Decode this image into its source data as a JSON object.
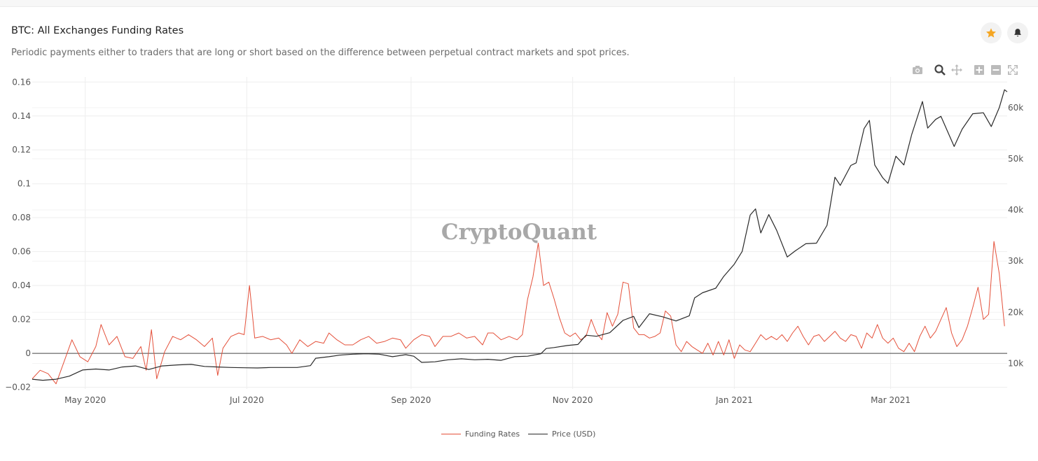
{
  "header": {
    "title": "BTC: All Exchanges Funding Rates",
    "subtitle": "Periodic payments either to traders that are long or short based on the difference between perpetual contract markets and spot prices."
  },
  "actions": {
    "favorite_icon": "star-icon",
    "alert_icon": "bell-icon",
    "favorite_color": "#f5a623"
  },
  "modebar": [
    "camera-icon",
    "zoom-icon",
    "pan-icon",
    "zoom-in-icon",
    "zoom-out-icon",
    "autoscale-icon"
  ],
  "watermark": "CryptoQuant",
  "chart_data": {
    "type": "line",
    "x_range": [
      "2020-04-11",
      "2021-04-14"
    ],
    "x_ticks": [
      {
        "date": "2020-05-01",
        "label": "May 2020"
      },
      {
        "date": "2020-07-01",
        "label": "Jul 2020"
      },
      {
        "date": "2020-09-01",
        "label": "Sep 2020"
      },
      {
        "date": "2020-11-01",
        "label": "Nov 2020"
      },
      {
        "date": "2021-01-01",
        "label": "Jan 2021"
      },
      {
        "date": "2021-03-01",
        "label": "Mar 2021"
      }
    ],
    "y_left": {
      "range": [
        -0.021,
        0.163
      ],
      "ticks": [
        -0.02,
        0,
        0.02,
        0.04,
        0.06,
        0.08,
        0.1,
        0.12,
        0.14,
        0.16
      ],
      "tick_labels": [
        "−0.02",
        "0",
        "0.02",
        "0.04",
        "0.06",
        "0.08",
        "0.1",
        "0.12",
        "0.14",
        "0.16"
      ]
    },
    "y_right": {
      "range": [
        5000,
        66000
      ],
      "ticks": [
        10000,
        20000,
        30000,
        40000,
        50000,
        60000
      ],
      "tick_labels": [
        "10k",
        "20k",
        "30k",
        "40k",
        "50k",
        "60k"
      ]
    },
    "grid": true,
    "legend_position": "bottom-center",
    "series": [
      {
        "name": "Funding Rates",
        "axis": "left",
        "color": "#e4503a",
        "points": [
          [
            "2020-04-11",
            -0.015
          ],
          [
            "2020-04-14",
            -0.01
          ],
          [
            "2020-04-17",
            -0.012
          ],
          [
            "2020-04-20",
            -0.018
          ],
          [
            "2020-04-23",
            -0.005
          ],
          [
            "2020-04-26",
            0.008
          ],
          [
            "2020-04-29",
            -0.002
          ],
          [
            "2020-05-02",
            -0.005
          ],
          [
            "2020-05-05",
            0.004
          ],
          [
            "2020-05-07",
            0.017
          ],
          [
            "2020-05-10",
            0.005
          ],
          [
            "2020-05-13",
            0.01
          ],
          [
            "2020-05-16",
            -0.002
          ],
          [
            "2020-05-19",
            -0.003
          ],
          [
            "2020-05-22",
            0.004
          ],
          [
            "2020-05-24",
            -0.01
          ],
          [
            "2020-05-26",
            0.014
          ],
          [
            "2020-05-28",
            -0.015
          ],
          [
            "2020-05-31",
            0.001
          ],
          [
            "2020-06-03",
            0.01
          ],
          [
            "2020-06-06",
            0.008
          ],
          [
            "2020-06-09",
            0.011
          ],
          [
            "2020-06-12",
            0.008
          ],
          [
            "2020-06-15",
            0.004
          ],
          [
            "2020-06-18",
            0.009
          ],
          [
            "2020-06-20",
            -0.013
          ],
          [
            "2020-06-22",
            0.003
          ],
          [
            "2020-06-25",
            0.01
          ],
          [
            "2020-06-28",
            0.012
          ],
          [
            "2020-06-30",
            0.011
          ],
          [
            "2020-07-02",
            0.04
          ],
          [
            "2020-07-04",
            0.009
          ],
          [
            "2020-07-07",
            0.01
          ],
          [
            "2020-07-10",
            0.008
          ],
          [
            "2020-07-13",
            0.009
          ],
          [
            "2020-07-16",
            0.005
          ],
          [
            "2020-07-18",
            0.0
          ],
          [
            "2020-07-21",
            0.008
          ],
          [
            "2020-07-24",
            0.004
          ],
          [
            "2020-07-27",
            0.007
          ],
          [
            "2020-07-30",
            0.006
          ],
          [
            "2020-08-01",
            0.012
          ],
          [
            "2020-08-04",
            0.008
          ],
          [
            "2020-08-07",
            0.005
          ],
          [
            "2020-08-10",
            0.005
          ],
          [
            "2020-08-13",
            0.008
          ],
          [
            "2020-08-16",
            0.01
          ],
          [
            "2020-08-19",
            0.006
          ],
          [
            "2020-08-22",
            0.007
          ],
          [
            "2020-08-25",
            0.009
          ],
          [
            "2020-08-28",
            0.008
          ],
          [
            "2020-08-30",
            0.003
          ],
          [
            "2020-09-02",
            0.008
          ],
          [
            "2020-09-05",
            0.011
          ],
          [
            "2020-09-08",
            0.01
          ],
          [
            "2020-09-10",
            0.004
          ],
          [
            "2020-09-13",
            0.01
          ],
          [
            "2020-09-16",
            0.01
          ],
          [
            "2020-09-19",
            0.012
          ],
          [
            "2020-09-22",
            0.009
          ],
          [
            "2020-09-25",
            0.01
          ],
          [
            "2020-09-28",
            0.005
          ],
          [
            "2020-09-30",
            0.012
          ],
          [
            "2020-10-02",
            0.012
          ],
          [
            "2020-10-05",
            0.008
          ],
          [
            "2020-10-08",
            0.01
          ],
          [
            "2020-10-11",
            0.008
          ],
          [
            "2020-10-13",
            0.011
          ],
          [
            "2020-10-15",
            0.032
          ],
          [
            "2020-10-17",
            0.045
          ],
          [
            "2020-10-19",
            0.065
          ],
          [
            "2020-10-21",
            0.04
          ],
          [
            "2020-10-23",
            0.042
          ],
          [
            "2020-10-25",
            0.032
          ],
          [
            "2020-10-27",
            0.021
          ],
          [
            "2020-10-29",
            0.012
          ],
          [
            "2020-10-31",
            0.01
          ],
          [
            "2020-11-02",
            0.012
          ],
          [
            "2020-11-04",
            0.008
          ],
          [
            "2020-11-06",
            0.01
          ],
          [
            "2020-11-08",
            0.02
          ],
          [
            "2020-11-10",
            0.012
          ],
          [
            "2020-11-12",
            0.008
          ],
          [
            "2020-11-14",
            0.024
          ],
          [
            "2020-11-16",
            0.016
          ],
          [
            "2020-11-18",
            0.023
          ],
          [
            "2020-11-20",
            0.042
          ],
          [
            "2020-11-22",
            0.041
          ],
          [
            "2020-11-24",
            0.015
          ],
          [
            "2020-11-26",
            0.011
          ],
          [
            "2020-11-28",
            0.011
          ],
          [
            "2020-11-30",
            0.009
          ],
          [
            "2020-12-02",
            0.01
          ],
          [
            "2020-12-04",
            0.012
          ],
          [
            "2020-12-06",
            0.025
          ],
          [
            "2020-12-08",
            0.022
          ],
          [
            "2020-12-10",
            0.005
          ],
          [
            "2020-12-12",
            0.001
          ],
          [
            "2020-12-14",
            0.007
          ],
          [
            "2020-12-16",
            0.004
          ],
          [
            "2020-12-18",
            0.002
          ],
          [
            "2020-12-20",
            0.0
          ],
          [
            "2020-12-22",
            0.006
          ],
          [
            "2020-12-24",
            -0.001
          ],
          [
            "2020-12-26",
            0.007
          ],
          [
            "2020-12-28",
            -0.001
          ],
          [
            "2020-12-30",
            0.008
          ],
          [
            "2021-01-01",
            -0.003
          ],
          [
            "2021-01-03",
            0.005
          ],
          [
            "2021-01-05",
            0.002
          ],
          [
            "2021-01-07",
            0.001
          ],
          [
            "2021-01-09",
            0.006
          ],
          [
            "2021-01-11",
            0.011
          ],
          [
            "2021-01-13",
            0.008
          ],
          [
            "2021-01-15",
            0.01
          ],
          [
            "2021-01-17",
            0.008
          ],
          [
            "2021-01-19",
            0.011
          ],
          [
            "2021-01-21",
            0.007
          ],
          [
            "2021-01-23",
            0.012
          ],
          [
            "2021-01-25",
            0.016
          ],
          [
            "2021-01-27",
            0.01
          ],
          [
            "2021-01-29",
            0.005
          ],
          [
            "2021-01-31",
            0.01
          ],
          [
            "2021-02-02",
            0.011
          ],
          [
            "2021-02-04",
            0.007
          ],
          [
            "2021-02-06",
            0.01
          ],
          [
            "2021-02-08",
            0.013
          ],
          [
            "2021-02-10",
            0.009
          ],
          [
            "2021-02-12",
            0.007
          ],
          [
            "2021-02-14",
            0.011
          ],
          [
            "2021-02-16",
            0.01
          ],
          [
            "2021-02-18",
            0.003
          ],
          [
            "2021-02-20",
            0.012
          ],
          [
            "2021-02-22",
            0.009
          ],
          [
            "2021-02-24",
            0.017
          ],
          [
            "2021-02-26",
            0.009
          ],
          [
            "2021-02-28",
            0.006
          ],
          [
            "2021-03-02",
            0.009
          ],
          [
            "2021-03-04",
            0.003
          ],
          [
            "2021-03-06",
            0.001
          ],
          [
            "2021-03-08",
            0.006
          ],
          [
            "2021-03-10",
            0.001
          ],
          [
            "2021-03-12",
            0.01
          ],
          [
            "2021-03-14",
            0.016
          ],
          [
            "2021-03-16",
            0.009
          ],
          [
            "2021-03-18",
            0.013
          ],
          [
            "2021-03-20",
            0.02
          ],
          [
            "2021-03-22",
            0.027
          ],
          [
            "2021-03-24",
            0.012
          ],
          [
            "2021-03-26",
            0.004
          ],
          [
            "2021-03-28",
            0.008
          ],
          [
            "2021-03-30",
            0.016
          ],
          [
            "2021-04-01",
            0.027
          ],
          [
            "2021-04-03",
            0.039
          ],
          [
            "2021-04-05",
            0.02
          ],
          [
            "2021-04-07",
            0.023
          ],
          [
            "2021-04-09",
            0.066
          ],
          [
            "2021-04-11",
            0.047
          ],
          [
            "2021-04-13",
            0.016
          ]
        ]
      },
      {
        "name": "Price (USD)",
        "axis": "right",
        "color": "#2a2a2a",
        "points": [
          [
            "2020-04-11",
            6900
          ],
          [
            "2020-04-15",
            6700
          ],
          [
            "2020-04-20",
            6900
          ],
          [
            "2020-04-25",
            7500
          ],
          [
            "2020-04-30",
            8700
          ],
          [
            "2020-05-05",
            8900
          ],
          [
            "2020-05-10",
            8700
          ],
          [
            "2020-05-15",
            9300
          ],
          [
            "2020-05-20",
            9500
          ],
          [
            "2020-05-25",
            8800
          ],
          [
            "2020-05-30",
            9500
          ],
          [
            "2020-06-05",
            9700
          ],
          [
            "2020-06-10",
            9800
          ],
          [
            "2020-06-15",
            9400
          ],
          [
            "2020-06-20",
            9300
          ],
          [
            "2020-06-25",
            9200
          ],
          [
            "2020-06-30",
            9150
          ],
          [
            "2020-07-05",
            9100
          ],
          [
            "2020-07-10",
            9200
          ],
          [
            "2020-07-15",
            9200
          ],
          [
            "2020-07-20",
            9200
          ],
          [
            "2020-07-25",
            9550
          ],
          [
            "2020-07-27",
            11000
          ],
          [
            "2020-08-01",
            11300
          ],
          [
            "2020-08-05",
            11600
          ],
          [
            "2020-08-10",
            11800
          ],
          [
            "2020-08-15",
            11900
          ],
          [
            "2020-08-20",
            11800
          ],
          [
            "2020-08-25",
            11300
          ],
          [
            "2020-08-30",
            11700
          ],
          [
            "2020-09-02",
            11400
          ],
          [
            "2020-09-05",
            10200
          ],
          [
            "2020-09-10",
            10300
          ],
          [
            "2020-09-15",
            10700
          ],
          [
            "2020-09-20",
            10900
          ],
          [
            "2020-09-25",
            10700
          ],
          [
            "2020-09-30",
            10800
          ],
          [
            "2020-10-05",
            10600
          ],
          [
            "2020-10-10",
            11300
          ],
          [
            "2020-10-15",
            11400
          ],
          [
            "2020-10-20",
            11900
          ],
          [
            "2020-10-22",
            12900
          ],
          [
            "2020-10-25",
            13100
          ],
          [
            "2020-10-30",
            13500
          ],
          [
            "2020-11-03",
            13700
          ],
          [
            "2020-11-06",
            15500
          ],
          [
            "2020-11-10",
            15300
          ],
          [
            "2020-11-15",
            16000
          ],
          [
            "2020-11-20",
            18400
          ],
          [
            "2020-11-24",
            19200
          ],
          [
            "2020-11-26",
            17000
          ],
          [
            "2020-11-30",
            19700
          ],
          [
            "2020-12-05",
            19100
          ],
          [
            "2020-12-10",
            18300
          ],
          [
            "2020-12-15",
            19300
          ],
          [
            "2020-12-17",
            22800
          ],
          [
            "2020-12-20",
            23800
          ],
          [
            "2020-12-25",
            24700
          ],
          [
            "2020-12-28",
            27000
          ],
          [
            "2021-01-01",
            29400
          ],
          [
            "2021-01-04",
            31900
          ],
          [
            "2021-01-07",
            39000
          ],
          [
            "2021-01-09",
            40200
          ],
          [
            "2021-01-11",
            35500
          ],
          [
            "2021-01-14",
            39100
          ],
          [
            "2021-01-17",
            36000
          ],
          [
            "2021-01-21",
            30800
          ],
          [
            "2021-01-24",
            32000
          ],
          [
            "2021-01-28",
            33400
          ],
          [
            "2021-02-01",
            33500
          ],
          [
            "2021-02-05",
            37000
          ],
          [
            "2021-02-08",
            46400
          ],
          [
            "2021-02-10",
            44800
          ],
          [
            "2021-02-14",
            48700
          ],
          [
            "2021-02-16",
            49200
          ],
          [
            "2021-02-19",
            55900
          ],
          [
            "2021-02-21",
            57500
          ],
          [
            "2021-02-23",
            48800
          ],
          [
            "2021-02-26",
            46300
          ],
          [
            "2021-02-28",
            45200
          ],
          [
            "2021-03-03",
            50500
          ],
          [
            "2021-03-06",
            48800
          ],
          [
            "2021-03-09",
            54800
          ],
          [
            "2021-03-13",
            61200
          ],
          [
            "2021-03-15",
            56000
          ],
          [
            "2021-03-18",
            57700
          ],
          [
            "2021-03-20",
            58300
          ],
          [
            "2021-03-25",
            52400
          ],
          [
            "2021-03-28",
            55800
          ],
          [
            "2021-04-01",
            58800
          ],
          [
            "2021-04-05",
            59000
          ],
          [
            "2021-04-08",
            56300
          ],
          [
            "2021-04-11",
            60000
          ],
          [
            "2021-04-13",
            63500
          ],
          [
            "2021-04-14",
            63100
          ]
        ]
      }
    ]
  },
  "legend": {
    "items": [
      {
        "label": "Funding Rates",
        "color": "#e4503a"
      },
      {
        "label": "Price (USD)",
        "color": "#2a2a2a"
      }
    ]
  }
}
